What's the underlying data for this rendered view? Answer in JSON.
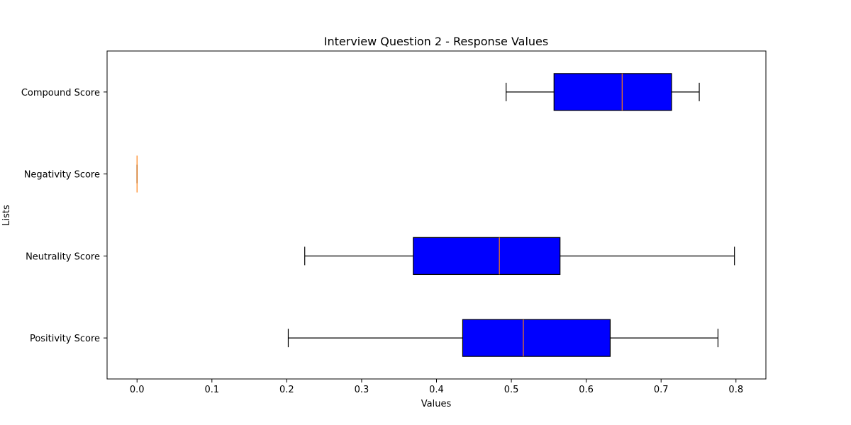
{
  "chart_data": {
    "type": "boxplot",
    "orientation": "horizontal",
    "title": "Interview Question 2 - Response Values",
    "xlabel": "Values",
    "ylabel": "Lists",
    "xlim": [
      -0.04,
      0.84
    ],
    "xticks": [
      0.0,
      0.1,
      0.2,
      0.3,
      0.4,
      0.5,
      0.6,
      0.7,
      0.8
    ],
    "xtick_labels": [
      "0.0",
      "0.1",
      "0.2",
      "0.3",
      "0.4",
      "0.5",
      "0.6",
      "0.7",
      "0.8"
    ],
    "categories": [
      "Compound Score",
      "Negativity Score",
      "Neutrality Score",
      "Positivity Score"
    ],
    "boxes": [
      {
        "name": "Compound Score",
        "whisker_low": 0.493,
        "q1": 0.557,
        "median": 0.648,
        "q3": 0.714,
        "whisker_high": 0.751
      },
      {
        "name": "Negativity Score",
        "whisker_low": 0.0,
        "q1": 0.0,
        "median": 0.0,
        "q3": 0.0,
        "whisker_high": 0.0
      },
      {
        "name": "Neutrality Score",
        "whisker_low": 0.224,
        "q1": 0.369,
        "median": 0.484,
        "q3": 0.565,
        "whisker_high": 0.798
      },
      {
        "name": "Positivity Score",
        "whisker_low": 0.202,
        "q1": 0.435,
        "median": 0.516,
        "q3": 0.632,
        "whisker_high": 0.776
      }
    ],
    "grid": false,
    "colors": {
      "box_fill": "#0000ff",
      "box_edge": "#000000",
      "median": "#ff7f0e",
      "whisker": "#000000"
    }
  }
}
